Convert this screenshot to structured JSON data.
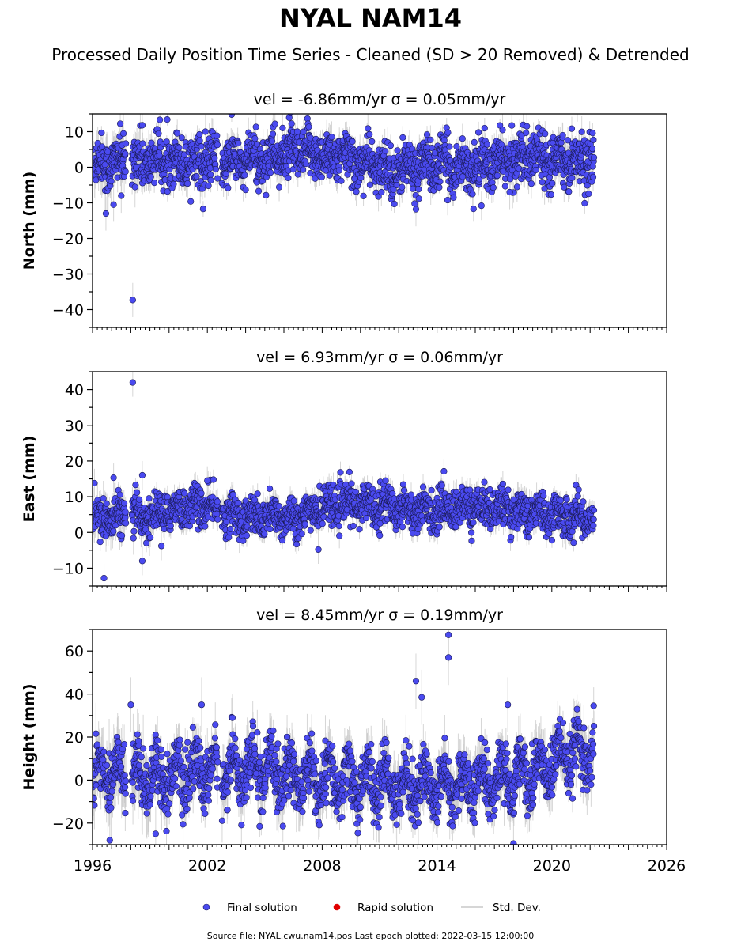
{
  "header": {
    "title": "NYAL NAM14",
    "subtitle": "Processed Daily Position Time Series - Cleaned (SD > 20 Removed) & Detrended"
  },
  "footer": {
    "source": "Source file: NYAL.cwu.nam14.pos  Last epoch plotted: 2022-03-15 12:00:00"
  },
  "legend": {
    "items": [
      {
        "label": "Final solution",
        "color": "#4a4af0",
        "marker": "circle"
      },
      {
        "label": "Rapid solution",
        "color": "#e00000",
        "marker": "circle"
      },
      {
        "label": "Std. Dev.",
        "color": "#c8c8c8",
        "marker": "line"
      }
    ]
  },
  "chart_data": [
    {
      "type": "scatter",
      "title": "vel = -6.86mm/yr   σ = 0.05mm/yr",
      "ylabel": "North (mm)",
      "xlim": [
        1996,
        2026
      ],
      "ylim": [
        -45,
        15
      ],
      "yticks": [
        10,
        0,
        -10,
        -20,
        -30,
        -40
      ],
      "xticks": [
        1996,
        2002,
        2008,
        2014,
        2020,
        2026
      ],
      "grid": false,
      "series": [
        {
          "marker_color": "#4a4af0",
          "errorbar_color": "#c8c8c8",
          "x_range": [
            1996.0,
            2022.2
          ],
          "baseline": [
            [
              1996.0,
              1.0
            ],
            [
              2000.0,
              2.0
            ],
            [
              2004.0,
              1.5
            ],
            [
              2006.5,
              4.0
            ],
            [
              2009.0,
              3.0
            ],
            [
              2011.5,
              -1.0
            ],
            [
              2014.0,
              1.0
            ],
            [
              2016.0,
              0.0
            ],
            [
              2019.0,
              3.5
            ],
            [
              2022.2,
              2.0
            ]
          ],
          "spread": 3.5,
          "annual_amplitude": 2.0,
          "typical_sd": 3.0,
          "outliers": [
            [
              1998.1,
              -37.3
            ],
            [
              1996.7,
              -13.0
            ],
            [
              1997.1,
              -10.5
            ],
            [
              2012.9,
              -11.8
            ],
            [
              1998.6,
              11.8
            ],
            [
              2006.7,
              10.0
            ],
            [
              2001.9,
              10.0
            ],
            [
              1997.5,
              -8.0
            ],
            [
              2017.8,
              -7.0
            ]
          ]
        }
      ]
    },
    {
      "type": "scatter",
      "title": "vel = 6.93mm/yr   σ = 0.06mm/yr",
      "ylabel": "East (mm)",
      "xlim": [
        1996,
        2026
      ],
      "ylim": [
        -15,
        45
      ],
      "yticks": [
        40,
        30,
        20,
        10,
        0,
        -10
      ],
      "xticks": [
        1996,
        2002,
        2008,
        2014,
        2020,
        2026
      ],
      "grid": false,
      "series": [
        {
          "marker_color": "#4a4af0",
          "errorbar_color": "#c8c8c8",
          "x_range": [
            1996.0,
            2022.2
          ],
          "baseline": [
            [
              1996.0,
              4.0
            ],
            [
              1999.0,
              4.5
            ],
            [
              2001.0,
              7.5
            ],
            [
              2002.0,
              7.0
            ],
            [
              2004.0,
              4.0
            ],
            [
              2007.0,
              4.5
            ],
            [
              2008.0,
              7.5
            ],
            [
              2011.0,
              8.0
            ],
            [
              2013.0,
              6.0
            ],
            [
              2016.0,
              7.5
            ],
            [
              2019.0,
              5.5
            ],
            [
              2022.2,
              4.0
            ]
          ],
          "spread": 2.7,
          "annual_amplitude": 1.5,
          "typical_sd": 2.5,
          "outliers": [
            [
              1998.1,
              42.0
            ],
            [
              1998.6,
              16.0
            ],
            [
              1997.1,
              15.3
            ],
            [
              1996.1,
              13.8
            ],
            [
              2002.0,
              14.5
            ],
            [
              1996.6,
              -12.8
            ],
            [
              1998.6,
              -8.0
            ],
            [
              2007.8,
              -4.8
            ],
            [
              1999.6,
              -3.8
            ]
          ]
        }
      ]
    },
    {
      "type": "scatter",
      "title": "vel = 8.45mm/yr   σ = 0.19mm/yr",
      "ylabel": "Height (mm)",
      "xlim": [
        1996,
        2026
      ],
      "ylim": [
        -30,
        70
      ],
      "yticks": [
        60,
        40,
        20,
        0,
        -20
      ],
      "xticks": [
        1996,
        2002,
        2008,
        2014,
        2020,
        2026
      ],
      "grid": false,
      "series": [
        {
          "marker_color": "#4a4af0",
          "errorbar_color": "#c8c8c8",
          "x_range": [
            1996.0,
            2022.2
          ],
          "baseline": [
            [
              1996.0,
              3.0
            ],
            [
              2000.0,
              2.0
            ],
            [
              2004.0,
              5.0
            ],
            [
              2008.0,
              0.0
            ],
            [
              2012.0,
              -2.0
            ],
            [
              2016.0,
              -2.0
            ],
            [
              2019.0,
              3.0
            ],
            [
              2021.0,
              12.0
            ],
            [
              2022.2,
              10.0
            ]
          ],
          "spread": 6.5,
          "annual_amplitude": 8.0,
          "typical_sd": 8.0,
          "outliers": [
            [
              2014.6,
              67.5
            ],
            [
              2014.6,
              57.0
            ],
            [
              2012.9,
              46.0
            ],
            [
              2013.2,
              38.5
            ],
            [
              2001.7,
              35.0
            ],
            [
              1998.0,
              35.0
            ],
            [
              2017.7,
              35.0
            ],
            [
              2018.0,
              -29.5
            ],
            [
              1996.9,
              -28.0
            ],
            [
              1999.3,
              -25.0
            ]
          ]
        }
      ]
    }
  ]
}
